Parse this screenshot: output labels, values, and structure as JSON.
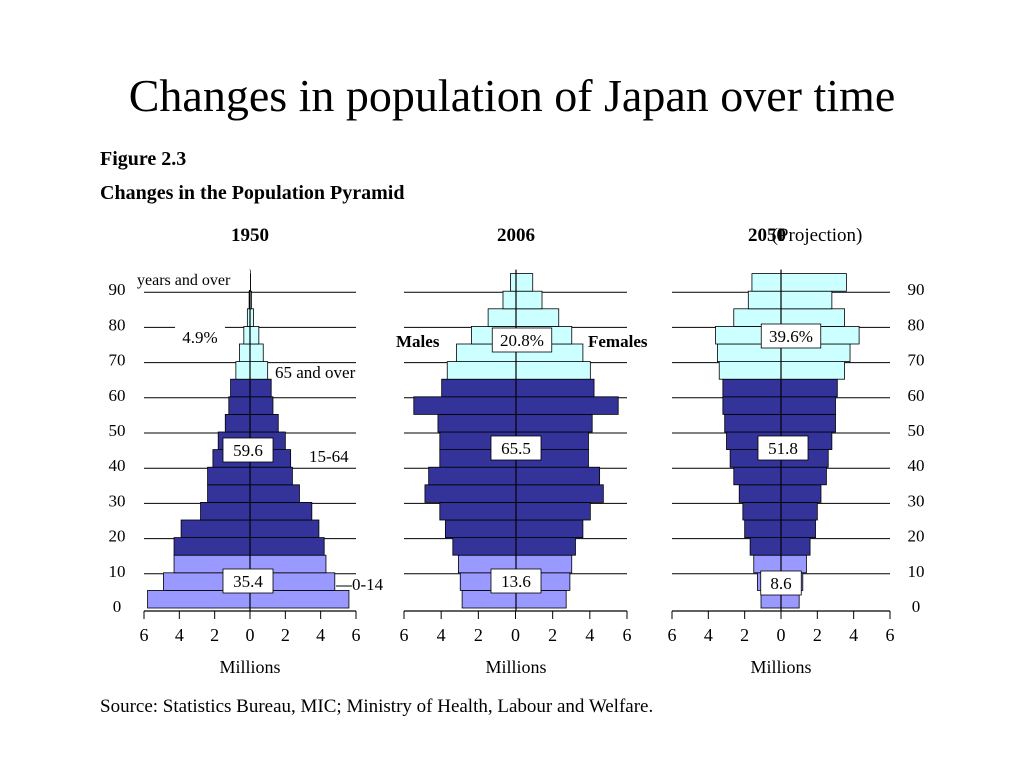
{
  "slide": {
    "title": "Changes in population of Japan over time"
  },
  "figure": {
    "label": "Figure 2.3",
    "subtitle": "Changes in the Population Pyramid",
    "source": "Source:  Statistics Bureau, MIC;  Ministry of Health, Labour and Welfare."
  },
  "colors": {
    "age_65_over": "#ccffff",
    "age_15_64": "#333399",
    "age_0_14": "#9999ff",
    "outline": "#000000"
  },
  "chart_data": [
    {
      "type": "bar",
      "subtype": "population-pyramid",
      "title": "1950",
      "title_note": "",
      "xlabel": "Millions",
      "xlim": [
        -6,
        6
      ],
      "x_ticks": [
        "6",
        "4",
        "2",
        "0",
        "2",
        "4",
        "6"
      ],
      "y_ticks": [
        "90",
        "80",
        "70",
        "60",
        "50",
        "40",
        "30",
        "20",
        "10",
        "0"
      ],
      "top_label": "years and over",
      "bins": [
        "0",
        "5",
        "10",
        "15",
        "20",
        "25",
        "30",
        "35",
        "40",
        "45",
        "50",
        "55",
        "60",
        "65",
        "70",
        "75",
        "80",
        "85",
        "90"
      ],
      "males": [
        5.8,
        4.9,
        4.3,
        4.3,
        3.9,
        2.8,
        2.4,
        2.4,
        2.1,
        1.8,
        1.4,
        1.2,
        1.1,
        0.8,
        0.6,
        0.35,
        0.15,
        0.05,
        0.03
      ],
      "females": [
        5.6,
        4.8,
        4.3,
        4.2,
        3.9,
        3.5,
        2.8,
        2.4,
        2.3,
        2.0,
        1.6,
        1.3,
        1.2,
        1.0,
        0.75,
        0.5,
        0.2,
        0.08,
        0.03
      ],
      "group_labels": [
        {
          "text": "4.9%",
          "group": "65+"
        },
        {
          "text": "59.6",
          "group": "15-64"
        },
        {
          "text": "35.4",
          "group": "0-14"
        }
      ],
      "side_labels": [
        "65 and over",
        "15-64",
        "0-14"
      ]
    },
    {
      "type": "bar",
      "subtype": "population-pyramid",
      "title": "2006",
      "title_note": "",
      "xlabel": "Millions",
      "xlim": [
        -6,
        6
      ],
      "x_ticks": [
        "6",
        "4",
        "2",
        "0",
        "2",
        "4",
        "6"
      ],
      "bins": [
        "0",
        "5",
        "10",
        "15",
        "20",
        "25",
        "30",
        "35",
        "40",
        "45",
        "50",
        "55",
        "60",
        "65",
        "70",
        "75",
        "80",
        "85",
        "90"
      ],
      "males": [
        2.9,
        3.0,
        3.1,
        3.4,
        3.8,
        4.1,
        4.9,
        4.7,
        4.1,
        4.1,
        4.2,
        5.5,
        4.0,
        3.7,
        3.2,
        2.4,
        1.5,
        0.7,
        0.3
      ],
      "females": [
        2.7,
        2.9,
        3.0,
        3.2,
        3.6,
        4.0,
        4.7,
        4.5,
        3.9,
        3.9,
        4.1,
        5.5,
        4.2,
        4.0,
        3.6,
        3.0,
        2.3,
        1.4,
        0.9
      ],
      "group_labels": [
        {
          "text": "20.8%",
          "group": "65+"
        },
        {
          "text": "65.5",
          "group": "15-64"
        },
        {
          "text": "13.6",
          "group": "0-14"
        }
      ],
      "side_labels": [
        "Males",
        "Females"
      ]
    },
    {
      "type": "bar",
      "subtype": "population-pyramid",
      "title": "2050",
      "title_note": "(Projection)",
      "xlabel": "Millions",
      "xlim": [
        -6,
        6
      ],
      "x_ticks": [
        "6",
        "4",
        "2",
        "0",
        "2",
        "4",
        "6"
      ],
      "y_ticks": [
        "90",
        "80",
        "70",
        "60",
        "50",
        "40",
        "30",
        "20",
        "10",
        "0"
      ],
      "bins": [
        "0",
        "5",
        "10",
        "15",
        "20",
        "25",
        "30",
        "35",
        "40",
        "45",
        "50",
        "55",
        "60",
        "65",
        "70",
        "75",
        "80",
        "85",
        "90"
      ],
      "males": [
        1.1,
        1.3,
        1.5,
        1.7,
        2.0,
        2.1,
        2.3,
        2.6,
        2.8,
        3.0,
        3.1,
        3.2,
        3.2,
        3.4,
        3.5,
        3.6,
        2.6,
        1.8,
        1.6
      ],
      "females": [
        1.0,
        1.2,
        1.4,
        1.6,
        1.9,
        2.0,
        2.2,
        2.5,
        2.6,
        2.8,
        3.0,
        3.0,
        3.1,
        3.5,
        3.8,
        4.3,
        3.5,
        2.8,
        3.6
      ],
      "group_labels": [
        {
          "text": "39.6%",
          "group": "65+"
        },
        {
          "text": "51.8",
          "group": "15-64"
        },
        {
          "text": "8.6",
          "group": "0-14"
        }
      ],
      "side_labels": []
    }
  ]
}
